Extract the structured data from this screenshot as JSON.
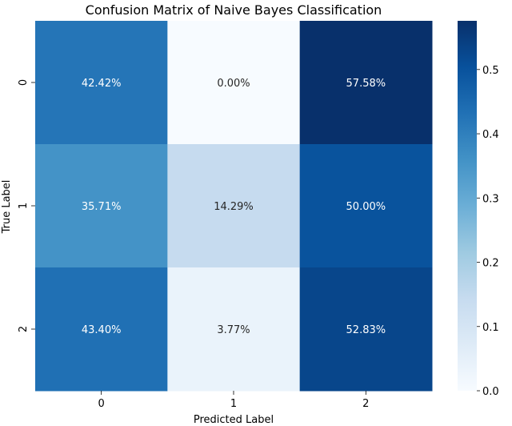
{
  "chart_data": {
    "type": "heatmap",
    "title": "Confusion Matrix of Naive Bayes Classification",
    "xlabel": "Predicted Label",
    "ylabel": "True Label",
    "x_categories": [
      "0",
      "1",
      "2"
    ],
    "y_categories": [
      "0",
      "1",
      "2"
    ],
    "values": [
      [
        0.4242,
        0.0,
        0.5758
      ],
      [
        0.3571,
        0.1429,
        0.5
      ],
      [
        0.434,
        0.0377,
        0.5283
      ]
    ],
    "cell_labels": [
      [
        "42.42%",
        "0.00%",
        "57.58%"
      ],
      [
        "35.71%",
        "14.29%",
        "50.00%"
      ],
      [
        "43.40%",
        "3.77%",
        "52.83%"
      ]
    ],
    "colormap": "Blues",
    "colorbar": {
      "range": [
        0.0,
        0.5758
      ],
      "tick_values": [
        0.0,
        0.1,
        0.2,
        0.3,
        0.4,
        0.5
      ],
      "tick_labels": [
        "0.0",
        "0.1",
        "0.2",
        "0.3",
        "0.4",
        "0.5"
      ]
    }
  }
}
